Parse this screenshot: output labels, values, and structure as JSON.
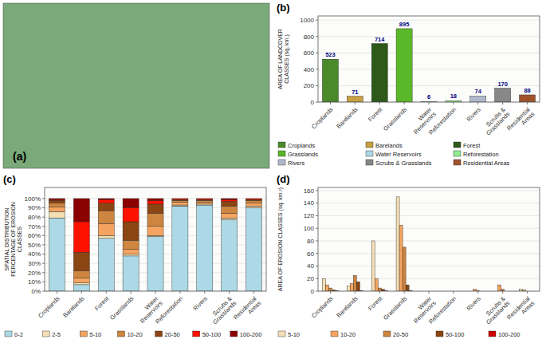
{
  "chart_data": [
    {
      "type": "map",
      "title": "(a)",
      "color": "#7aaa7a"
    },
    {
      "type": "bar",
      "title": "(b)",
      "ylabel": "AREA OF LANDCOVER\nCLASSES (sq. km.)",
      "categories": [
        "Croplands",
        "Barelands",
        "Forest",
        "Grasslands",
        "Water\nReservoirs",
        "Reforestation",
        "Rivers",
        "Scrubs &\nGrasslands",
        "Residential\nAreas"
      ],
      "values": [
        523,
        71,
        714,
        895,
        6,
        18,
        74,
        170,
        88
      ],
      "colors": [
        "#4a8a2a",
        "#c8a040",
        "#2d5a1a",
        "#5ab828",
        "#add8e6",
        "#90ee90",
        "#b0b8cc",
        "#888888",
        "#a0522d"
      ],
      "legend_labels": [
        "Croplands",
        "Barelands",
        "Forest",
        "Grasslands",
        "Water Reservoirs",
        "Reforestation",
        "Rivers",
        "Scrubs & Grasslands",
        "Residential Areas"
      ],
      "legend": "bottom",
      "data_labels": true,
      "ylim": [
        0,
        1050
      ],
      "yticks": [
        0,
        200,
        400,
        600,
        800,
        1000
      ],
      "grid": true
    },
    {
      "type": "bar",
      "title": "(c)",
      "ylabel": "SPATIAL DISTRIBUTION\nPERCENTAGE OF EROSION\nCLASSES",
      "stacked": true,
      "categories": [
        "Croplands",
        "Barelands",
        "Forest",
        "Grasslands",
        "Water\nReservoirs",
        "Reforestation",
        "Rivers",
        "Scrubs &\nGrasslands",
        "Residential\nAreas"
      ],
      "series": [
        {
          "name": "0-2",
          "color": "#add8e6",
          "values": [
            79,
            7,
            57,
            38,
            59,
            92,
            93,
            77,
            90
          ]
        },
        {
          "name": "2-5",
          "color": "#f5deb3",
          "values": [
            7,
            2,
            3,
            2,
            1,
            1,
            1,
            2,
            2
          ]
        },
        {
          "name": "5-10",
          "color": "#f4a460",
          "values": [
            5,
            5,
            13,
            5,
            10,
            3,
            2,
            5,
            3
          ]
        },
        {
          "name": "10-20",
          "color": "#cd853f",
          "values": [
            4,
            8,
            14,
            10,
            14,
            2,
            2,
            8,
            3
          ]
        },
        {
          "name": "20-50",
          "color": "#8b4513",
          "values": [
            3,
            20,
            8,
            20,
            10,
            1,
            1,
            5,
            1
          ]
        },
        {
          "name": "50-100",
          "color": "#ff1100",
          "values": [
            1,
            33,
            4,
            15,
            4,
            1,
            1,
            2,
            1
          ]
        },
        {
          "name": "100-200",
          "color": "#8b0000",
          "values": [
            1,
            25,
            1,
            10,
            2,
            0,
            0,
            1,
            0
          ]
        }
      ],
      "legend": "bottom",
      "ylim": [
        0,
        112
      ],
      "yticks": [
        {
          "value": 0,
          "label": "0%"
        },
        {
          "value": 10,
          "label": "10%"
        },
        {
          "value": 20,
          "label": "20%"
        },
        {
          "value": 30,
          "label": "30%"
        },
        {
          "value": 40,
          "label": "40%"
        },
        {
          "value": 50,
          "label": "50%"
        },
        {
          "value": 60,
          "label": "60%"
        },
        {
          "value": 70,
          "label": "70%"
        },
        {
          "value": 80,
          "label": "80%"
        },
        {
          "value": 90,
          "label": "90%"
        },
        {
          "value": 100,
          "label": "100%"
        }
      ],
      "grid": true
    },
    {
      "type": "bar",
      "title": "(d)",
      "ylabel": "AREA OF EROSION CLASSES (sq. km.²)",
      "categories": [
        "Croplands",
        "Barelands",
        "Forest",
        "Grasslands",
        "Water\nReservoirs",
        "Reforestation",
        "Rivers",
        "Scrubs &\nGrasslands",
        "Residential\nAreas"
      ],
      "series": [
        {
          "name": "5-10",
          "color": "#f5deb3",
          "values": [
            20,
            8,
            80,
            150,
            0,
            0,
            0,
            0,
            3
          ]
        },
        {
          "name": "10-20",
          "color": "#f4a460",
          "values": [
            10,
            12,
            20,
            105,
            0,
            0,
            3,
            10,
            2
          ]
        },
        {
          "name": "20-50",
          "color": "#cd853f",
          "values": [
            5,
            25,
            5,
            70,
            0,
            0,
            1,
            3,
            0
          ]
        },
        {
          "name": "50-100",
          "color": "#8b4513",
          "values": [
            2,
            15,
            3,
            10,
            0,
            0,
            0,
            0,
            0
          ]
        },
        {
          "name": "100-200",
          "color": "#cc0000",
          "values": [
            1,
            1,
            1,
            1,
            0,
            0,
            0,
            0,
            0
          ]
        }
      ],
      "legend": "bottom",
      "ylim": [
        0,
        165
      ],
      "yticks": [
        0,
        20,
        40,
        60,
        80,
        100,
        120,
        140,
        160
      ],
      "grid": true
    }
  ]
}
